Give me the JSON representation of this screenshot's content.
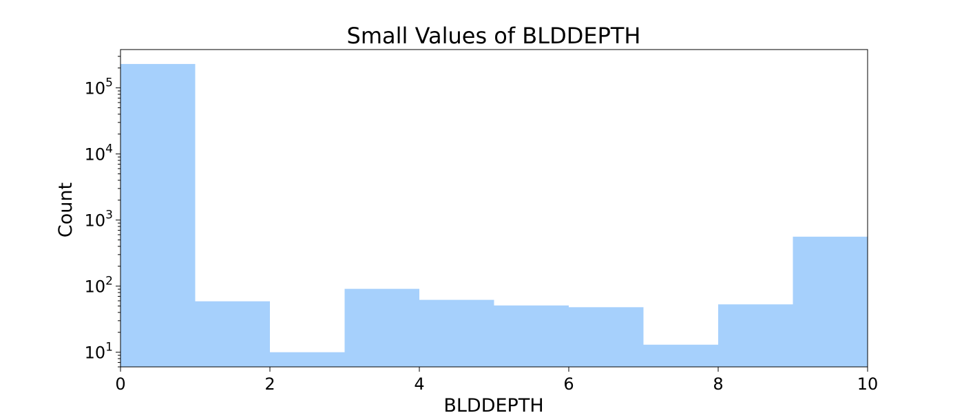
{
  "chart_data": {
    "type": "bar",
    "title": "Small Values of BLDDEPTH",
    "xlabel": "BLDDEPTH",
    "ylabel": "Count",
    "y_scale": "log",
    "xlim": [
      0,
      10
    ],
    "ylim": [
      6,
      380000
    ],
    "bins": [
      {
        "x0": 0,
        "x1": 1,
        "count": 230000
      },
      {
        "x0": 1,
        "x1": 2,
        "count": 59
      },
      {
        "x0": 2,
        "x1": 3,
        "count": 10
      },
      {
        "x0": 3,
        "x1": 4,
        "count": 91
      },
      {
        "x0": 4,
        "x1": 5,
        "count": 62
      },
      {
        "x0": 5,
        "x1": 6,
        "count": 51
      },
      {
        "x0": 6,
        "x1": 7,
        "count": 48
      },
      {
        "x0": 7,
        "x1": 8,
        "count": 13
      },
      {
        "x0": 8,
        "x1": 9,
        "count": 53
      },
      {
        "x0": 9,
        "x1": 10,
        "count": 560
      }
    ],
    "xticks": [
      "0",
      "2",
      "4",
      "6",
      "8",
      "10"
    ],
    "xtick_values": [
      0,
      2,
      4,
      6,
      8,
      10
    ],
    "yticks": [
      {
        "value": 10,
        "base": "10",
        "exp": "1"
      },
      {
        "value": 100,
        "base": "10",
        "exp": "2"
      },
      {
        "value": 1000,
        "base": "10",
        "exp": "3"
      },
      {
        "value": 10000,
        "base": "10",
        "exp": "4"
      },
      {
        "value": 100000,
        "base": "10",
        "exp": "5"
      }
    ],
    "bar_color": "#a6d0fc",
    "grid": false,
    "legend": "none"
  }
}
